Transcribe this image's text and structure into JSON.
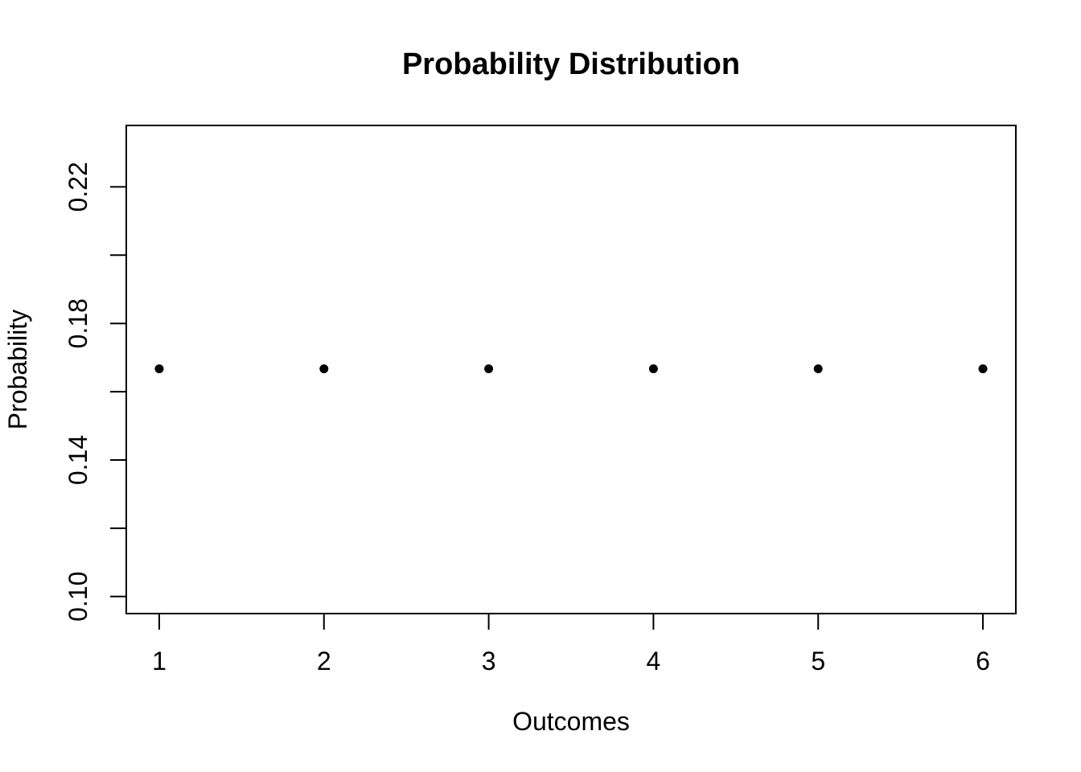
{
  "chart_data": {
    "type": "scatter",
    "title": "Probability Distribution",
    "xlabel": "Outcomes",
    "ylabel": "Probability",
    "x": [
      1,
      2,
      3,
      4,
      5,
      6
    ],
    "y": [
      0.1667,
      0.1667,
      0.1667,
      0.1667,
      0.1667,
      0.1667
    ],
    "xlim": [
      0.8,
      6.2
    ],
    "ylim": [
      0.095,
      0.238
    ],
    "x_ticks": [
      {
        "value": 1,
        "label": "1"
      },
      {
        "value": 2,
        "label": "2"
      },
      {
        "value": 3,
        "label": "3"
      },
      {
        "value": 4,
        "label": "4"
      },
      {
        "value": 5,
        "label": "5"
      },
      {
        "value": 6,
        "label": "6"
      }
    ],
    "y_ticks": [
      {
        "value": 0.1,
        "label": "0.10"
      },
      {
        "value": 0.12,
        "label": ""
      },
      {
        "value": 0.14,
        "label": "0.14"
      },
      {
        "value": 0.16,
        "label": ""
      },
      {
        "value": 0.18,
        "label": "0.18"
      },
      {
        "value": 0.2,
        "label": ""
      },
      {
        "value": 0.22,
        "label": "0.22"
      }
    ],
    "grid": false,
    "legend": null,
    "marker": "filled-circle",
    "colors": {
      "points": "#000000",
      "axis": "#000000",
      "text": "#000000",
      "background": "#ffffff"
    }
  }
}
